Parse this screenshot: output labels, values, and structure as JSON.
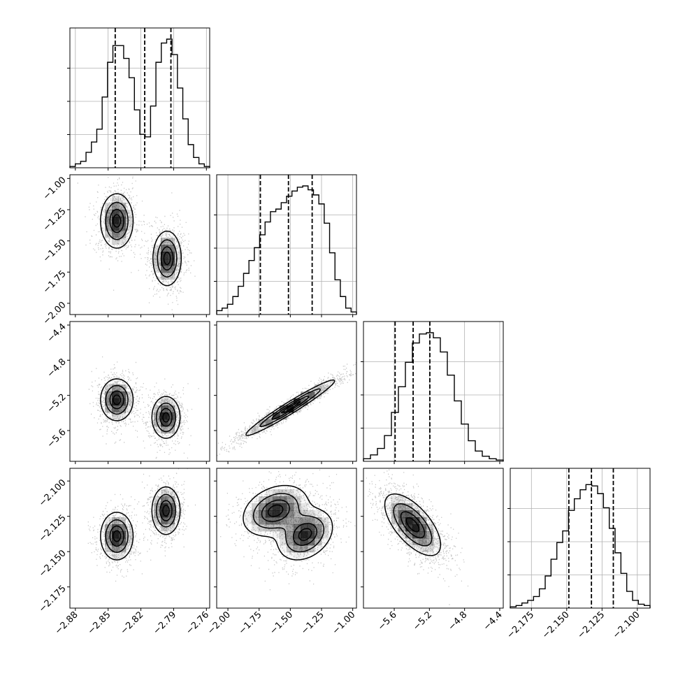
{
  "chart_data": {
    "type": "corner",
    "title": "",
    "parameters": [
      {
        "label": "",
        "range": [
          -2.885,
          -2.757
        ],
        "ticks": [
          -2.88,
          -2.85,
          -2.82,
          -2.79,
          -2.76
        ],
        "tick_labels": [
          "−2.88",
          "−2.85",
          "−2.82",
          "−2.79",
          "−2.76"
        ],
        "quantiles": [
          -2.8435,
          -2.8165,
          -2.7925
        ],
        "histogram": [
          0.01,
          0.03,
          0.05,
          0.12,
          0.2,
          0.3,
          0.55,
          0.82,
          0.95,
          0.95,
          0.85,
          0.7,
          0.45,
          0.26,
          0.24,
          0.48,
          0.82,
          0.97,
          1.0,
          0.88,
          0.62,
          0.38,
          0.18,
          0.08,
          0.03,
          0.01
        ]
      },
      {
        "label": "",
        "range": [
          -2.09,
          -0.97
        ],
        "ticks": [
          -2.0,
          -1.75,
          -1.5,
          -1.25,
          -1.0
        ],
        "tick_labels": [
          "−2.00",
          "−1.75",
          "−1.50",
          "−1.25",
          "−1.00"
        ],
        "quantiles": [
          -1.74,
          -1.515,
          -1.325
        ],
        "histogram": [
          0.03,
          0.05,
          0.08,
          0.14,
          0.22,
          0.32,
          0.42,
          0.52,
          0.62,
          0.72,
          0.8,
          0.82,
          0.87,
          0.92,
          0.96,
          0.99,
          1.0,
          0.97,
          0.93,
          0.86,
          0.71,
          0.48,
          0.27,
          0.14,
          0.05,
          0.02
        ]
      },
      {
        "label": "",
        "range": [
          -5.95,
          -4.36
        ],
        "ticks": [
          -5.6,
          -5.2,
          -4.8,
          -4.4
        ],
        "tick_labels": [
          "−5.6",
          "−5.2",
          "−4.8",
          "−4.4"
        ],
        "quantiles": [
          -5.59,
          -5.385,
          -5.195
        ],
        "histogram": [
          0.02,
          0.05,
          0.1,
          0.2,
          0.38,
          0.58,
          0.77,
          0.92,
          0.99,
          1.0,
          0.96,
          0.85,
          0.67,
          0.47,
          0.29,
          0.16,
          0.08,
          0.04,
          0.02,
          0.01
        ]
      },
      {
        "label": "",
        "range": [
          -2.19,
          -2.091
        ],
        "ticks": [
          -2.175,
          -2.15,
          -2.125,
          -2.1
        ],
        "tick_labels": [
          "−2.175",
          "−2.150",
          "−2.125",
          "−2.100"
        ],
        "quantiles": [
          -2.1485,
          -2.1325,
          -2.117
        ],
        "histogram": [
          0.01,
          0.02,
          0.04,
          0.06,
          0.09,
          0.15,
          0.25,
          0.38,
          0.51,
          0.6,
          0.76,
          0.85,
          0.92,
          0.96,
          0.95,
          0.89,
          0.78,
          0.62,
          0.43,
          0.27,
          0.13,
          0.06,
          0.03,
          0.02
        ]
      }
    ],
    "pairs": [
      {
        "x": 0,
        "y": 1,
        "rho": 0,
        "modes": [
          {
            "x": -2.842,
            "y": -1.34,
            "sx": 0.0075,
            "sy": 0.11,
            "w": 0.5
          },
          {
            "x": -2.796,
            "y": -1.64,
            "sx": 0.0065,
            "sy": 0.11,
            "w": 0.5
          }
        ]
      },
      {
        "x": 0,
        "y": 2,
        "rho": 0,
        "modes": [
          {
            "x": -2.842,
            "y": -5.25,
            "sx": 0.0075,
            "sy": 0.12,
            "w": 0.5
          },
          {
            "x": -2.797,
            "y": -5.45,
            "sx": 0.0065,
            "sy": 0.12,
            "w": 0.5
          }
        ]
      },
      {
        "x": 1,
        "y": 2,
        "rho": 0.97,
        "modes": [
          {
            "x": -1.5,
            "y": -5.34,
            "sx": 0.18,
            "sy": 0.16,
            "w": 1.0
          }
        ]
      },
      {
        "x": 0,
        "y": 3,
        "rho": 0,
        "modes": [
          {
            "x": -2.842,
            "y": -2.139,
            "sx": 0.0075,
            "sy": 0.0085,
            "w": 0.5
          },
          {
            "x": -2.797,
            "y": -2.121,
            "sx": 0.0065,
            "sy": 0.0085,
            "w": 0.5
          }
        ]
      },
      {
        "x": 1,
        "y": 3,
        "rho": 0.3,
        "modes": [
          {
            "x": -1.62,
            "y": -2.121,
            "sx": 0.13,
            "sy": 0.009,
            "w": 0.5
          },
          {
            "x": -1.38,
            "y": -2.138,
            "sx": 0.11,
            "sy": 0.009,
            "w": 0.5
          }
        ]
      },
      {
        "x": 2,
        "y": 3,
        "rho": -0.65,
        "modes": [
          {
            "x": -5.39,
            "y": -2.131,
            "sx": 0.16,
            "sy": 0.011,
            "w": 1.0
          }
        ]
      }
    ],
    "grid": true,
    "colors": {
      "line": "#000000",
      "grid": "#b0b0b0",
      "point": "#000000",
      "density": "#000000"
    }
  }
}
